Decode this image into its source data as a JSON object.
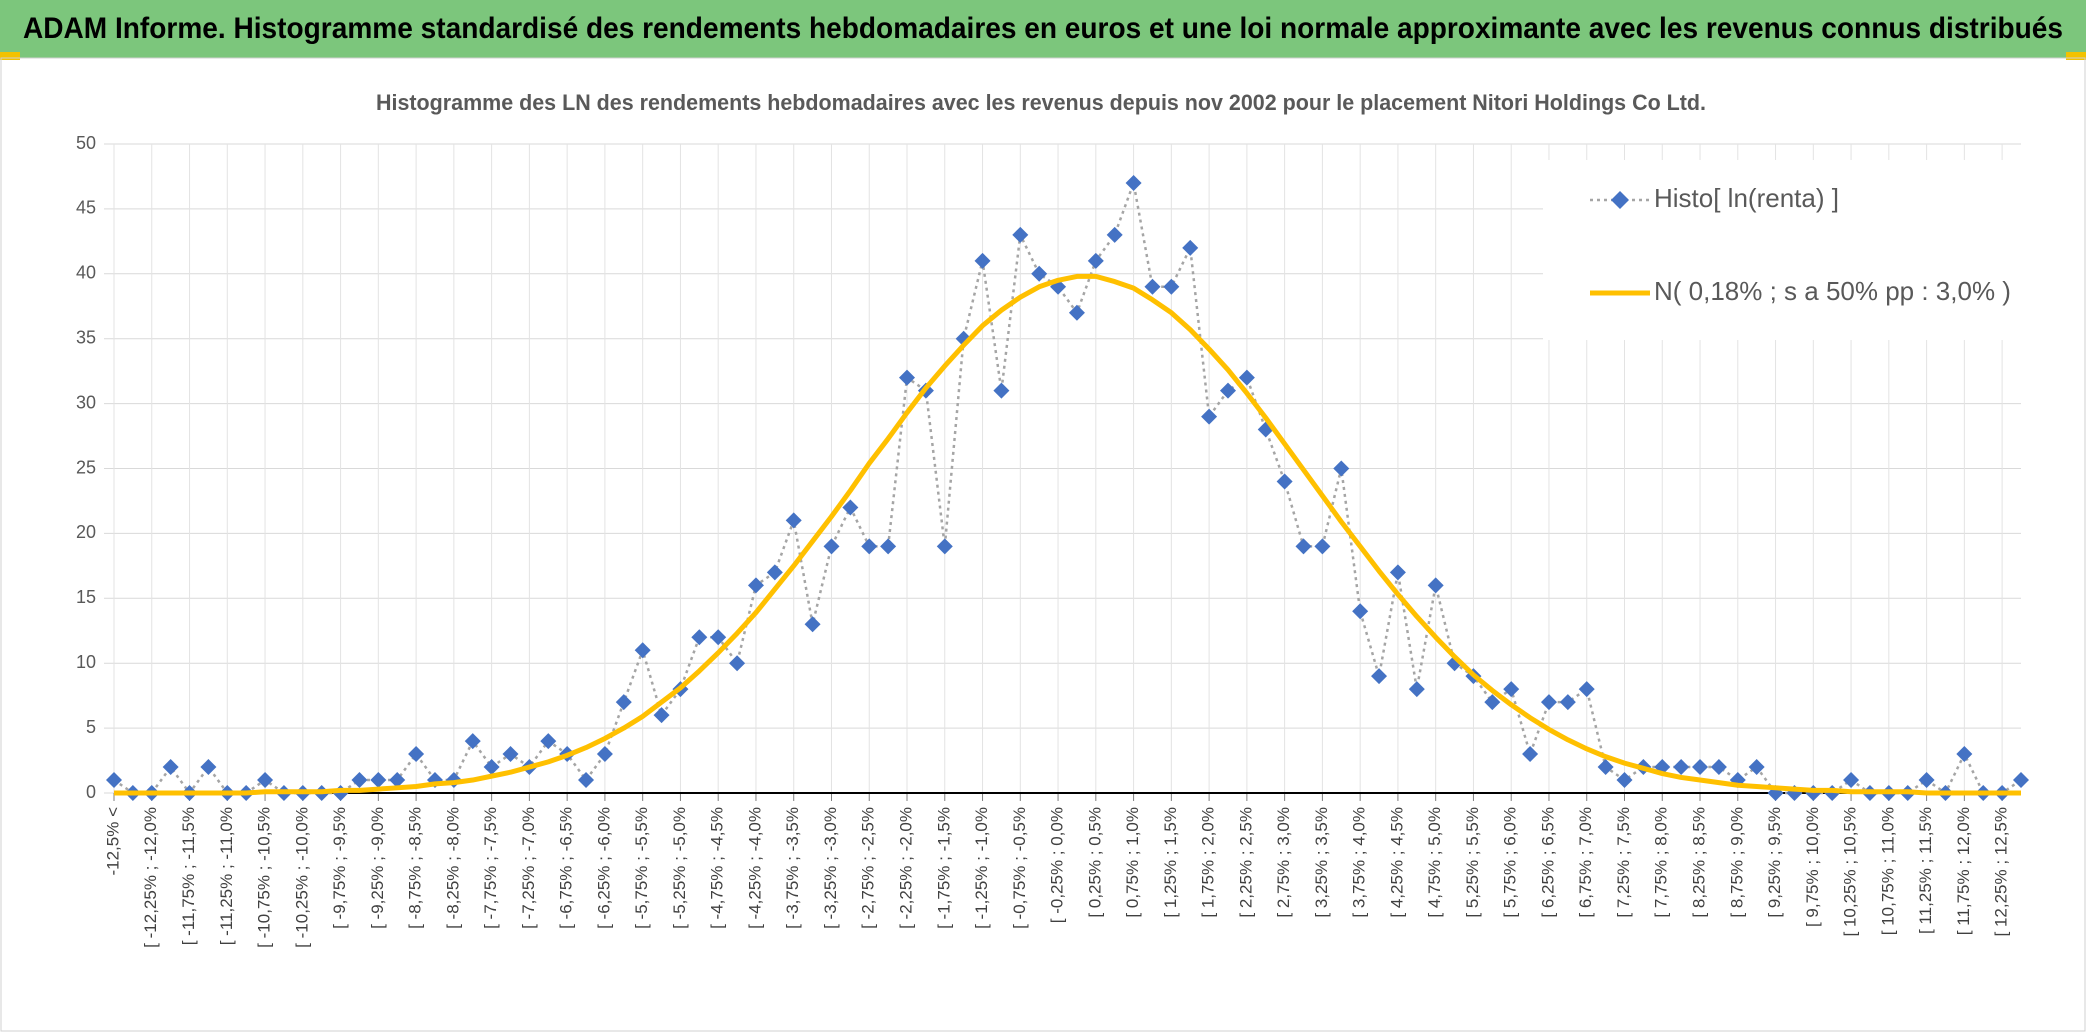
{
  "header": {
    "title": "ADAM Informe. Histogramme standardisé des rendements hebdomadaires en euros et une loi normale approximante avec les revenus connus distribués"
  },
  "chart_data": {
    "type": "line",
    "title": "Histogramme des LN des rendements hebdomadaires avec les revenus depuis nov 2002 pour le placement Nitori Holdings Co Ltd.",
    "categories": [
      "-12,5% <",
      null,
      "[ -12,25% ; -12,0%",
      null,
      "[ -11,75% ; -11,5%",
      null,
      "[ -11,25% ; -11,0%",
      null,
      "[ -10,75% ; -10,5%",
      null,
      "[ -10,25% ; -10,0%",
      null,
      "[ -9,75% ; -9,5%",
      null,
      "[ -9,25% ; -9,0%",
      null,
      "[ -8,75% ; -8,5%",
      null,
      "[ -8,25% ; -8,0%",
      null,
      "[ -7,75% ; -7,5%",
      null,
      "[ -7,25% ; -7,0%",
      null,
      "[ -6,75% ; -6,5%",
      null,
      "[ -6,25% ; -6,0%",
      null,
      "[ -5,75% ; -5,5%",
      null,
      "[ -5,25% ; -5,0%",
      null,
      "[ -4,75% ; -4,5%",
      null,
      "[ -4,25% ; -4,0%",
      null,
      "[ -3,75% ; -3,5%",
      null,
      "[ -3,25% ; -3,0%",
      null,
      "[ -2,75% ; -2,5%",
      null,
      "[ -2,25% ; -2,0%",
      null,
      "[ -1,75% ; -1,5%",
      null,
      "[ -1,25% ; -1,0%",
      null,
      "[ -0,75% ; -0,5%",
      null,
      "[ -0,25% ; 0,0%",
      null,
      "[ 0,25% ; 0,5%",
      null,
      "[ 0,75% ; 1,0%",
      null,
      "[ 1,25% ; 1,5%",
      null,
      "[ 1,75% ; 2,0%",
      null,
      "[ 2,25% ; 2,5%",
      null,
      "[ 2,75% ; 3,0%",
      null,
      "[ 3,25% ; 3,5%",
      null,
      "[ 3,75% ; 4,0%",
      null,
      "[ 4,25% ; 4,5%",
      null,
      "[ 4,75% ; 5,0%",
      null,
      "[ 5,25% ; 5,5%",
      null,
      "[ 5,75% ; 6,0%",
      null,
      "[ 6,25% ; 6,5%",
      null,
      "[ 6,75% ; 7,0%",
      null,
      "[ 7,25% ; 7,5%",
      null,
      "[ 7,75% ; 8,0%",
      null,
      "[ 8,25% ; 8,5%",
      null,
      "[ 8,75% ; 9,0%",
      null,
      "[ 9,25% ; 9,5%",
      null,
      "[ 9,75% ; 10,0%",
      null,
      "[ 10,25% ; 10,5%",
      null,
      "[ 10,75% ; 11,0%",
      null,
      "[ 11,25% ; 11,5%",
      null,
      "[ 11,75% ; 12,0%",
      null,
      "[ 12,25% ; 12,5%",
      null
    ],
    "series": [
      {
        "name": "Histo[ ln(renta) ]",
        "color": "#4472c4",
        "line_color": "#a5a5a5",
        "values": [
          1,
          0,
          0,
          2,
          0,
          2,
          0,
          0,
          1,
          0,
          0,
          0,
          0,
          1,
          1,
          1,
          3,
          1,
          1,
          4,
          2,
          3,
          2,
          4,
          3,
          1,
          3,
          7,
          11,
          6,
          8,
          12,
          12,
          10,
          16,
          17,
          21,
          13,
          19,
          22,
          19,
          19,
          32,
          31,
          19,
          35,
          41,
          31,
          43,
          40,
          39,
          37,
          41,
          43,
          47,
          39,
          39,
          42,
          29,
          31,
          32,
          28,
          24,
          19,
          19,
          25,
          14,
          9,
          17,
          8,
          16,
          10,
          9,
          7,
          8,
          3,
          7,
          7,
          8,
          2,
          1,
          2,
          2,
          2,
          2,
          2,
          1,
          2,
          0,
          0,
          0,
          0,
          1,
          0,
          0,
          0,
          1,
          0,
          3,
          0,
          0,
          1
        ]
      },
      {
        "name": "N( 0,18% ; s a 50% pp : 3,0% )",
        "color": "#ffc000",
        "values": [
          0,
          0,
          0,
          0,
          0,
          0,
          0,
          0,
          0.1,
          0.1,
          0.1,
          0.1,
          0.2,
          0.2,
          0.3,
          0.4,
          0.5,
          0.7,
          0.8,
          1.0,
          1.3,
          1.6,
          2.0,
          2.4,
          2.9,
          3.5,
          4.2,
          5.0,
          5.9,
          7.0,
          8.1,
          9.4,
          10.8,
          12.3,
          13.9,
          15.7,
          17.5,
          19.4,
          21.3,
          23.3,
          25.4,
          27.3,
          29.3,
          31.2,
          32.9,
          34.5,
          36.0,
          37.2,
          38.2,
          39.0,
          39.5,
          39.8,
          39.8,
          39.4,
          38.9,
          38.0,
          37.0,
          35.7,
          34.2,
          32.6,
          30.8,
          28.9,
          26.9,
          24.9,
          22.9,
          20.9,
          19.0,
          17.1,
          15.3,
          13.6,
          12.0,
          10.5,
          9.1,
          7.9,
          6.8,
          5.8,
          4.9,
          4.1,
          3.4,
          2.8,
          2.3,
          1.9,
          1.5,
          1.2,
          1.0,
          0.8,
          0.6,
          0.5,
          0.4,
          0.3,
          0.2,
          0.2,
          0.1,
          0.1,
          0.1,
          0.1,
          0,
          0,
          0,
          0,
          0,
          0
        ]
      }
    ],
    "ylim": [
      0,
      50
    ],
    "yticks": [
      0,
      5,
      10,
      15,
      20,
      25,
      30,
      35,
      40,
      45,
      50
    ],
    "grid": true
  }
}
